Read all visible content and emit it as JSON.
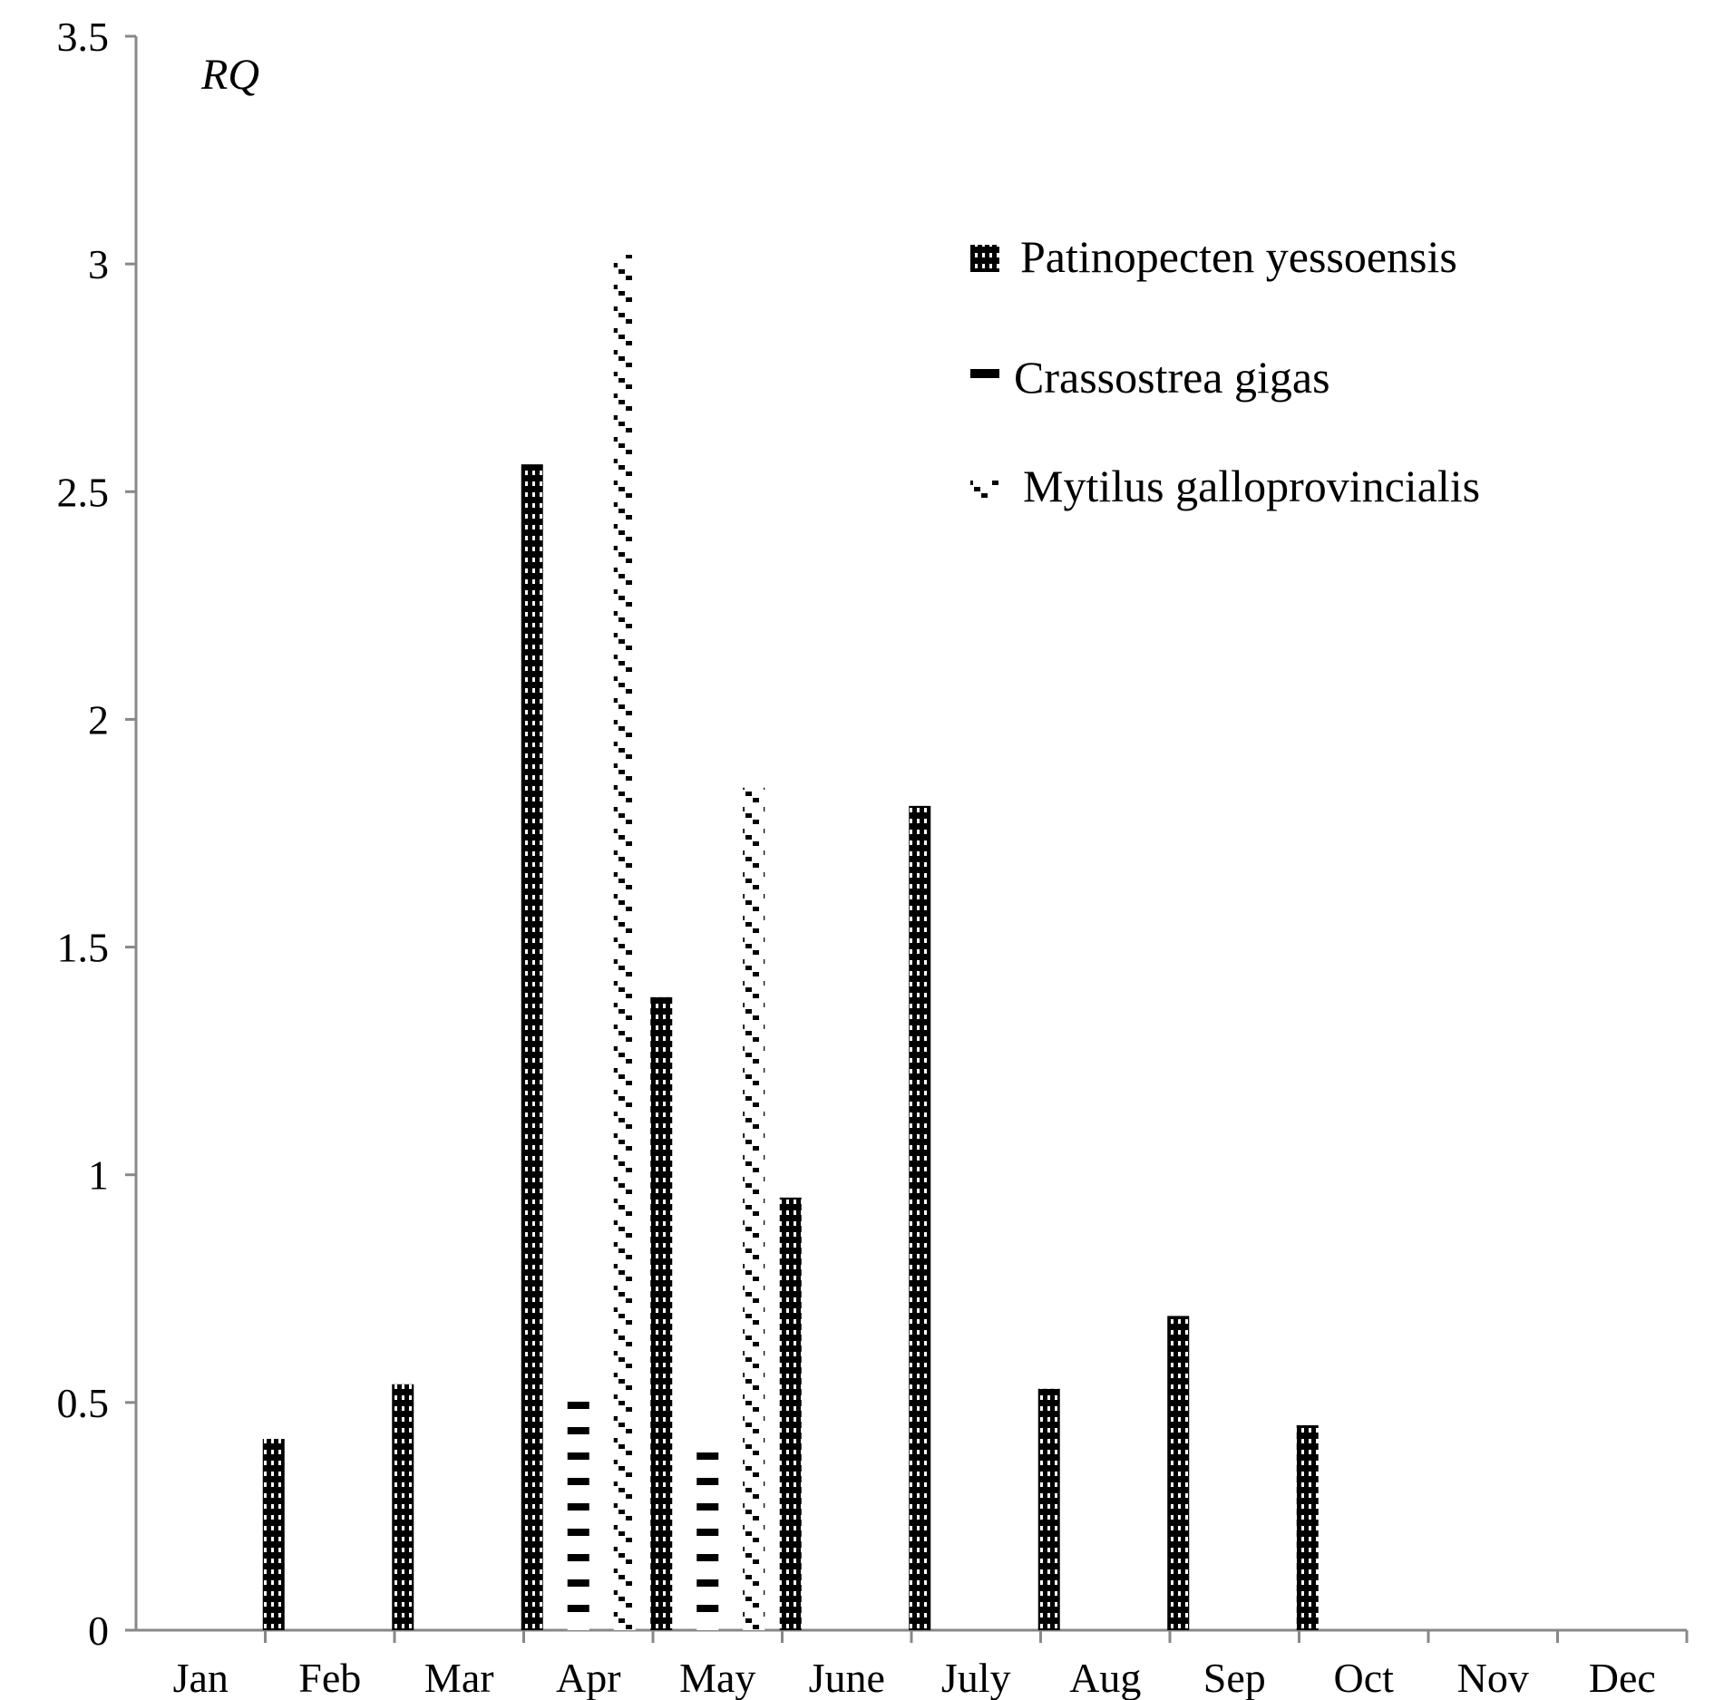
{
  "chart_data": {
    "type": "bar",
    "ylabel": "RQ",
    "xlabel": "",
    "ylim": [
      0,
      3.5
    ],
    "yticks": [
      "0",
      "0.5",
      "1",
      "1.5",
      "2",
      "2.5",
      "3",
      "3.5"
    ],
    "grid": false,
    "legend_position": "top-right",
    "categories": [
      "Jan",
      "Feb",
      "Mar",
      "Apr",
      "May",
      "June",
      "July",
      "Aug",
      "Sep",
      "Oct",
      "Nov",
      "Dec"
    ],
    "series": [
      {
        "name": "Patinopecten yessoensis",
        "pattern": "grid-pattern",
        "values": [
          0,
          0.42,
          0.54,
          2.56,
          1.39,
          0.95,
          1.81,
          0.53,
          0.69,
          0.45,
          0,
          0
        ]
      },
      {
        "name": "Crassostrea gigas",
        "pattern": "dash-pattern",
        "values": [
          0,
          0,
          0,
          0.53,
          0.41,
          0,
          0,
          0,
          0,
          0,
          0,
          0
        ]
      },
      {
        "name": "Mytilus galloprovincialis",
        "pattern": "diagonal-pattern",
        "values": [
          0,
          0,
          0,
          3.02,
          1.85,
          0,
          0,
          0,
          0,
          0,
          0,
          0
        ]
      }
    ]
  }
}
